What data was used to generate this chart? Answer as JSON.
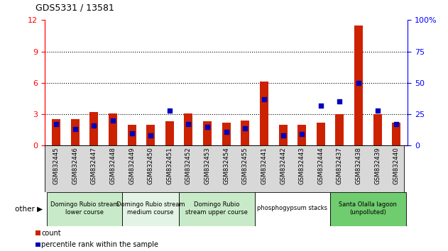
{
  "title": "GDS5331 / 13581",
  "samples": [
    "GSM832445",
    "GSM832446",
    "GSM832447",
    "GSM832448",
    "GSM832449",
    "GSM832450",
    "GSM832451",
    "GSM832452",
    "GSM832453",
    "GSM832454",
    "GSM832455",
    "GSM832441",
    "GSM832442",
    "GSM832443",
    "GSM832444",
    "GSM832437",
    "GSM832438",
    "GSM832439",
    "GSM832440"
  ],
  "count_values": [
    2.5,
    2.5,
    3.2,
    3.1,
    2.0,
    2.0,
    2.3,
    3.1,
    2.3,
    2.2,
    2.4,
    6.1,
    2.0,
    2.0,
    2.2,
    3.0,
    11.5,
    3.0,
    2.2
  ],
  "percentile_values": [
    17,
    13,
    16,
    20,
    10,
    8,
    28,
    17,
    15,
    11,
    14,
    37,
    8,
    9,
    32,
    35,
    50,
    28,
    17
  ],
  "groups": [
    {
      "label": "Domingo Rubio stream\nlower course",
      "start": 0,
      "end": 3,
      "color": "#c8eac8"
    },
    {
      "label": "Domingo Rubio stream\nmedium course",
      "start": 4,
      "end": 6,
      "color": "#e4f4e4"
    },
    {
      "label": "Domingo Rubio\nstream upper course",
      "start": 7,
      "end": 10,
      "color": "#c8eac8"
    },
    {
      "label": "phosphogypsum stacks",
      "start": 11,
      "end": 14,
      "color": "#ffffff"
    },
    {
      "label": "Santa Olalla lagoon\n(unpolluted)",
      "start": 15,
      "end": 18,
      "color": "#6fcc6f"
    }
  ],
  "left_ylim": [
    0,
    12
  ],
  "right_ylim": [
    0,
    100
  ],
  "left_yticks": [
    0,
    3,
    6,
    9,
    12
  ],
  "right_yticks": [
    0,
    25,
    50,
    75,
    100
  ],
  "bar_color": "#cc2200",
  "dot_color": "#0000bb",
  "bg_color": "#d8d8d8",
  "other_label": "other",
  "legend_count": "count",
  "legend_pct": "percentile rank within the sample"
}
